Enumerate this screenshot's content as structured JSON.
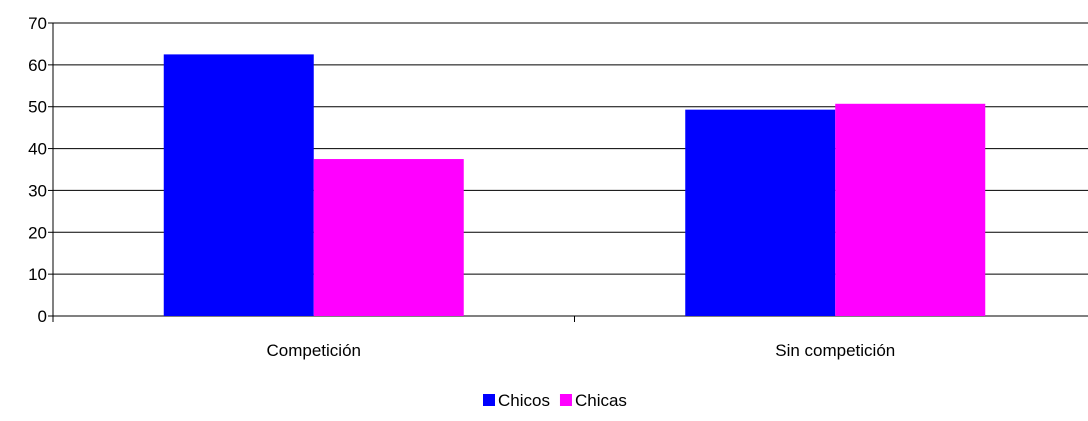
{
  "chart_data": {
    "type": "bar",
    "title": "",
    "xlabel": "",
    "ylabel": "",
    "categories": [
      "Competición",
      "Sin competición"
    ],
    "series": [
      {
        "name": "Chicos",
        "color": "#0000FF",
        "values": [
          62.5,
          49.3
        ]
      },
      {
        "name": "Chicas",
        "color": "#FF00FF",
        "values": [
          37.5,
          50.7
        ]
      }
    ],
    "ylim": [
      0,
      70
    ],
    "yticks": [
      0,
      10,
      20,
      30,
      40,
      50,
      60,
      70
    ],
    "grid": true,
    "legend_position": "bottom-center"
  }
}
